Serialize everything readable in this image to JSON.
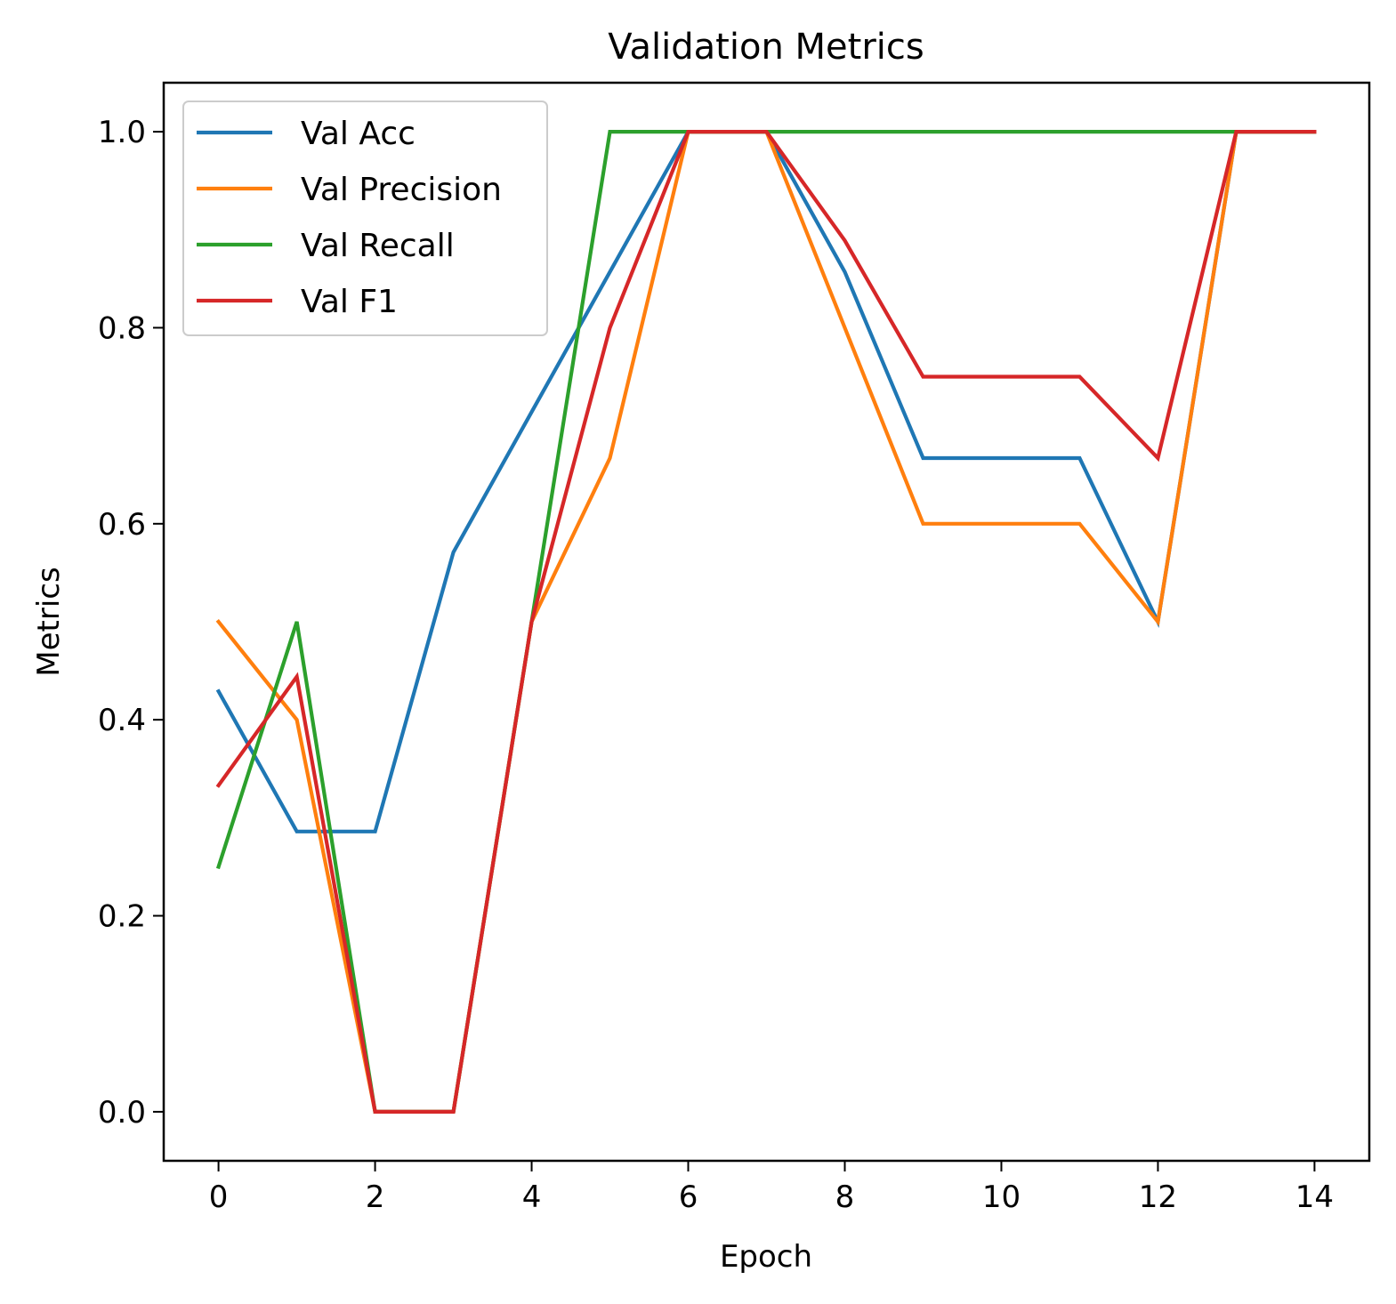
{
  "chart_data": {
    "type": "line",
    "title": "Validation Metrics",
    "xlabel": "Epoch",
    "ylabel": "Metrics",
    "xlim": [
      -0.7,
      14.7
    ],
    "ylim": [
      -0.05,
      1.05
    ],
    "x_ticks": [
      0,
      2,
      4,
      6,
      8,
      10,
      12,
      14
    ],
    "y_ticks": [
      0.0,
      0.2,
      0.4,
      0.6,
      0.8,
      1.0
    ],
    "x_tick_labels": [
      "0",
      "2",
      "4",
      "6",
      "8",
      "10",
      "12",
      "14"
    ],
    "y_tick_labels": [
      "0.0",
      "0.2",
      "0.4",
      "0.6",
      "0.8",
      "1.0"
    ],
    "grid": false,
    "legend_position": "upper-left",
    "x": [
      0,
      1,
      2,
      3,
      4,
      5,
      6,
      7,
      8,
      9,
      10,
      11,
      12,
      13,
      14
    ],
    "series": [
      {
        "name": "Val Acc",
        "color": "#1f77b4",
        "values": [
          0.429,
          0.286,
          0.286,
          0.571,
          0.714,
          0.857,
          1.0,
          1.0,
          0.857,
          0.667,
          0.667,
          0.667,
          0.5,
          1.0,
          1.0
        ]
      },
      {
        "name": "Val Precision",
        "color": "#ff7f0e",
        "values": [
          0.5,
          0.4,
          0.0,
          0.0,
          0.5,
          0.667,
          1.0,
          1.0,
          0.8,
          0.6,
          0.6,
          0.6,
          0.5,
          1.0,
          1.0
        ]
      },
      {
        "name": "Val Recall",
        "color": "#2ca02c",
        "values": [
          0.25,
          0.5,
          0.0,
          0.0,
          0.5,
          1.0,
          1.0,
          1.0,
          1.0,
          1.0,
          1.0,
          1.0,
          1.0,
          1.0,
          1.0
        ]
      },
      {
        "name": "Val F1",
        "color": "#d62728",
        "values": [
          0.333,
          0.444,
          0.0,
          0.0,
          0.5,
          0.8,
          1.0,
          1.0,
          0.889,
          0.75,
          0.75,
          0.75,
          0.667,
          1.0,
          1.0
        ]
      }
    ]
  }
}
